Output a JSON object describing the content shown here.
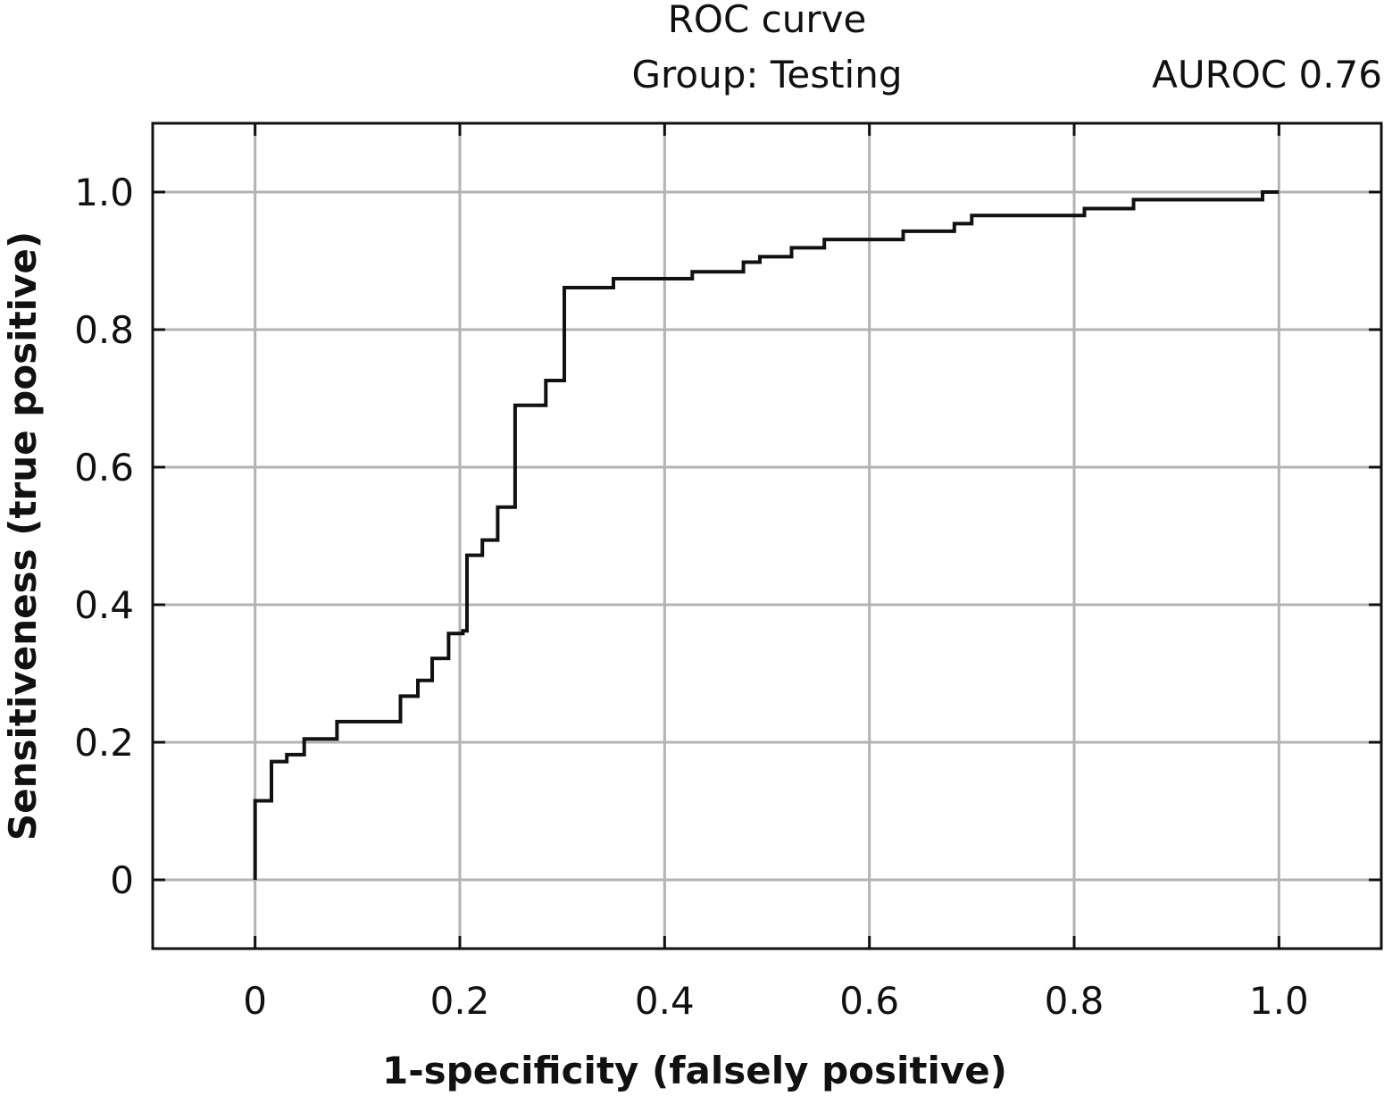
{
  "chart_data": {
    "type": "line",
    "title": "ROC curve",
    "subtitle": "Group: Testing",
    "annotation": "AUROC 0.76",
    "xlabel": "1-specificity (falsely positive)",
    "ylabel": "Sensitiveness (true positive)",
    "xlim": [
      -0.1,
      1.1
    ],
    "ylim": [
      -0.1,
      1.1
    ],
    "grid": true,
    "x_ticks": [
      0,
      0.2,
      0.4,
      0.6,
      0.8,
      1.0
    ],
    "x_tick_labels": [
      "0",
      "0.2",
      "0.4",
      "0.6",
      "0.8",
      "1.0"
    ],
    "y_ticks": [
      0,
      0.2,
      0.4,
      0.6,
      0.8,
      1.0
    ],
    "y_tick_labels": [
      "0",
      "0.2",
      "0.4",
      "0.6",
      "0.8",
      "1.0"
    ],
    "line_color": "#111111",
    "series": [
      {
        "step": true,
        "x": [
          0,
          0,
          0.016,
          0.016,
          0.031,
          0.031,
          0.048,
          0.048,
          0.08,
          0.08,
          0.142,
          0.142,
          0.159,
          0.159,
          0.173,
          0.173,
          0.189,
          0.189,
          0.203,
          0.203,
          0.207,
          0.207,
          0.222,
          0.222,
          0.237,
          0.237,
          0.254,
          0.254,
          0.284,
          0.284,
          0.302,
          0.302,
          0.35,
          0.35,
          0.427,
          0.427,
          0.477,
          0.477,
          0.493,
          0.493,
          0.524,
          0.524,
          0.556,
          0.556,
          0.633,
          0.633,
          0.683,
          0.683,
          0.7,
          0.7,
          0.81,
          0.81,
          0.858,
          0.858,
          0.984,
          0.984,
          1.0
        ],
        "y": [
          0,
          0.115,
          0.115,
          0.172,
          0.172,
          0.182,
          0.182,
          0.205,
          0.205,
          0.23,
          0.23,
          0.267,
          0.267,
          0.29,
          0.29,
          0.322,
          0.322,
          0.358,
          0.358,
          0.362,
          0.362,
          0.472,
          0.472,
          0.494,
          0.494,
          0.542,
          0.542,
          0.69,
          0.69,
          0.726,
          0.726,
          0.861,
          0.861,
          0.874,
          0.874,
          0.884,
          0.884,
          0.898,
          0.898,
          0.906,
          0.906,
          0.919,
          0.919,
          0.931,
          0.931,
          0.943,
          0.943,
          0.954,
          0.954,
          0.966,
          0.966,
          0.976,
          0.976,
          0.989,
          0.989,
          1.0,
          1.0
        ]
      }
    ]
  }
}
